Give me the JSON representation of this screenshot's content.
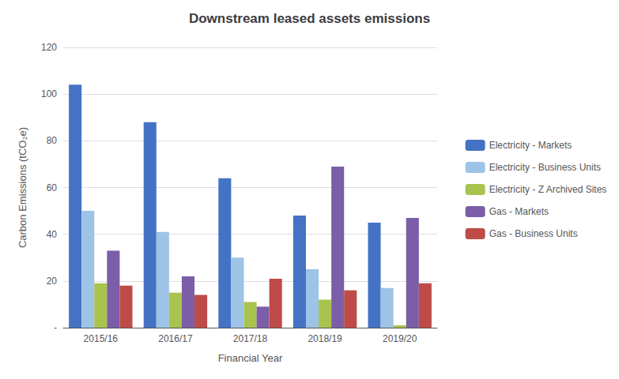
{
  "chart_data": {
    "type": "bar",
    "title": "Downstream leased assets emissions",
    "xlabel": "Financial Year",
    "ylabel": "Carbon Emissions (tCO₂e)",
    "categories": [
      "2015/16",
      "2016/17",
      "2017/18",
      "2018/19",
      "2019/20"
    ],
    "series": [
      {
        "name": "Electricity - Markets",
        "color": "#4472C4",
        "values": [
          104,
          88,
          64,
          48,
          45
        ]
      },
      {
        "name": "Electricity - Business Units",
        "color": "#9DC3E6",
        "values": [
          50,
          41,
          30,
          25,
          17
        ]
      },
      {
        "name": "Electricity - Z Archived Sites",
        "color": "#A9C34F",
        "values": [
          19,
          15,
          11,
          12,
          1
        ]
      },
      {
        "name": "Gas - Markets",
        "color": "#7B5EA7",
        "values": [
          33,
          22,
          9,
          69,
          47
        ]
      },
      {
        "name": "Gas - Business Units",
        "color": "#BE4B48",
        "values": [
          18,
          14,
          21,
          16,
          19
        ]
      }
    ],
    "ylim": [
      0,
      120
    ],
    "yticks": [
      {
        "value": 0,
        "label": "-"
      },
      20,
      40,
      60,
      80,
      100,
      120
    ],
    "grid": true,
    "legend": "right"
  }
}
